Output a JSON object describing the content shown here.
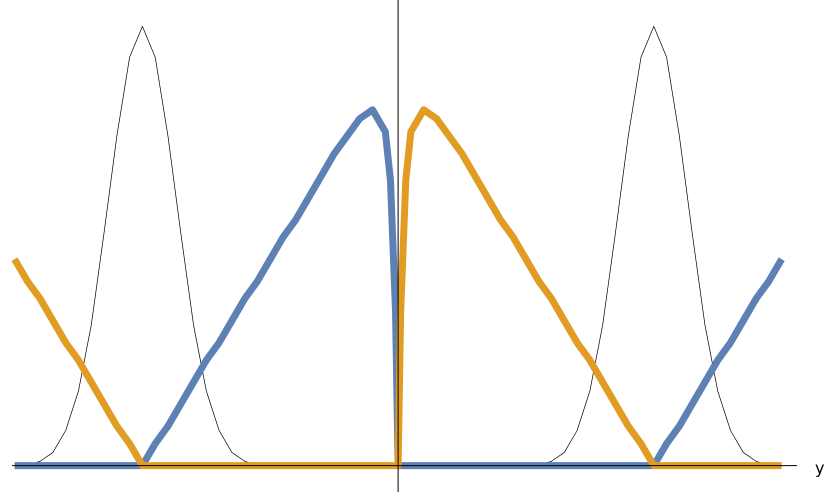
{
  "chart_data": {
    "type": "line",
    "x_label": "y",
    "xlim": [
      -1.51,
      1.56
    ],
    "ylim": [
      -0.06,
      1.06
    ],
    "x": [
      -1.5,
      -1.45,
      -1.4,
      -1.35,
      -1.3,
      -1.25,
      -1.2,
      -1.15,
      -1.1,
      -1.05,
      -1,
      -0.95,
      -0.9,
      -0.85,
      -0.8,
      -0.75,
      -0.7,
      -0.65,
      -0.6,
      -0.55,
      -0.5,
      -0.45,
      -0.4,
      -0.35,
      -0.3,
      -0.25,
      -0.2,
      -0.15,
      -0.1,
      -0.05,
      -0.03,
      -0.01,
      0,
      0.01,
      0.03,
      0.05,
      0.1,
      0.15,
      0.2,
      0.25,
      0.3,
      0.35,
      0.4,
      0.45,
      0.5,
      0.55,
      0.6,
      0.65,
      0.7,
      0.75,
      0.8,
      0.85,
      0.9,
      0.95,
      1,
      1.05,
      1.1,
      1.15,
      1.2,
      1.25,
      1.3,
      1.35,
      1.4,
      1.45,
      1.5
    ],
    "series": [
      {
        "color": "#000000",
        "values": [
          0,
          0,
          0.01,
          0.03,
          0.08,
          0.17,
          0.32,
          0.53,
          0.75,
          0.93,
          1,
          0.93,
          0.75,
          0.53,
          0.32,
          0.17,
          0.08,
          0.03,
          0.01,
          0,
          0,
          0,
          0,
          0,
          0,
          0,
          0,
          0,
          0,
          0,
          0,
          0,
          0,
          0,
          0,
          0,
          0,
          0,
          0,
          0,
          0,
          0,
          0,
          0,
          0,
          0,
          0.01,
          0.03,
          0.08,
          0.17,
          0.32,
          0.53,
          0.75,
          0.93,
          1,
          0.93,
          0.75,
          0.53,
          0.32,
          0.17,
          0.08,
          0.03,
          0.01,
          0,
          0
        ]
      },
      {
        "color": "#5e81b5",
        "values": [
          0,
          0,
          0,
          0,
          0,
          0,
          0,
          0,
          0,
          0,
          0,
          0.05,
          0.09,
          0.14,
          0.19,
          0.24,
          0.28,
          0.33,
          0.38,
          0.42,
          0.47,
          0.52,
          0.56,
          0.61,
          0.66,
          0.71,
          0.75,
          0.79,
          0.81,
          0.76,
          0.65,
          0.35,
          0,
          0,
          0,
          0,
          0,
          0,
          0,
          0,
          0,
          0,
          0,
          0,
          0,
          0,
          0,
          0,
          0,
          0,
          0,
          0,
          0,
          0,
          0,
          0.05,
          0.09,
          0.14,
          0.19,
          0.24,
          0.28,
          0.33,
          0.38,
          0.42,
          0.47
        ]
      },
      {
        "color": "#e19c24",
        "values": [
          0.47,
          0.42,
          0.38,
          0.33,
          0.28,
          0.24,
          0.19,
          0.14,
          0.09,
          0.05,
          0,
          0,
          0,
          0,
          0,
          0,
          0,
          0,
          0,
          0,
          0,
          0,
          0,
          0,
          0,
          0,
          0,
          0,
          0,
          0,
          0,
          0,
          0,
          0.35,
          0.65,
          0.76,
          0.81,
          0.79,
          0.75,
          0.71,
          0.66,
          0.61,
          0.56,
          0.52,
          0.47,
          0.42,
          0.38,
          0.33,
          0.28,
          0.24,
          0.19,
          0.14,
          0.09,
          0.05,
          0,
          0,
          0,
          0,
          0,
          0,
          0,
          0,
          0,
          0,
          0
        ]
      }
    ]
  }
}
